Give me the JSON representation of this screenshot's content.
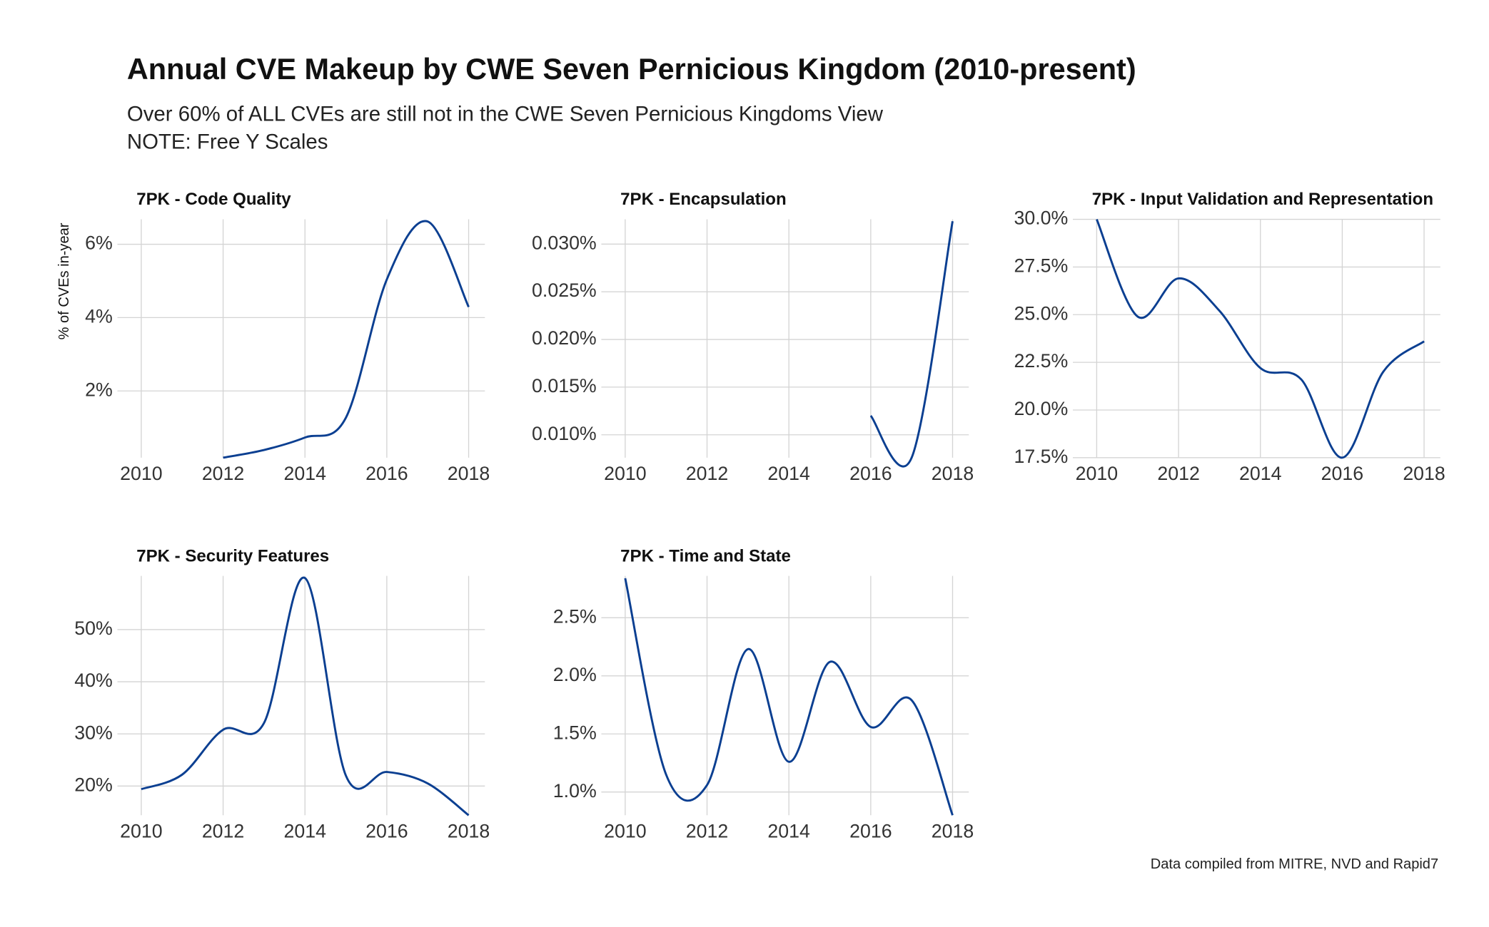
{
  "title": "Annual CVE Makeup by CWE Seven Pernicious Kingdom (2010-present)",
  "subtitle": "Over 60% of ALL CVEs are still not in the CWE Seven Pernicious Kingdoms View",
  "note": "NOTE: Free Y Scales",
  "y_label": "% of CVEs in-year",
  "caption": "Data compiled from MITRE, NVD and Rapid7",
  "chart_data": [
    {
      "type": "line",
      "title": "7PK - Code Quality",
      "color": "#0b3f91",
      "grid": true,
      "x": [
        2010,
        2011,
        2012,
        2013,
        2014,
        2015,
        2016,
        2017,
        2018
      ],
      "values": [
        null,
        null,
        0.18,
        0.39,
        0.73,
        1.27,
        5.04,
        6.62,
        4.29
      ],
      "xlim": [
        2010,
        2018
      ],
      "xticks": [
        2010,
        2012,
        2014,
        2016,
        2018
      ],
      "ylim": [
        0.18,
        6.68
      ],
      "yticks": [
        {
          "value": 2,
          "label": "2%"
        },
        {
          "value": 4,
          "label": "4%"
        },
        {
          "value": 6,
          "label": "6%"
        }
      ]
    },
    {
      "type": "line",
      "title": "7PK - Encapsulation",
      "color": "#0b3f91",
      "grid": true,
      "x": [
        2010,
        2011,
        2012,
        2013,
        2014,
        2015,
        2016,
        2017,
        2018
      ],
      "values": [
        null,
        null,
        null,
        null,
        null,
        null,
        0.012,
        0.0076,
        0.0324
      ],
      "xlim": [
        2010,
        2018
      ],
      "xticks": [
        2010,
        2012,
        2014,
        2016,
        2018
      ],
      "ylim": [
        0.0076,
        0.0326
      ],
      "yticks": [
        {
          "value": 0.01,
          "label": "0.010%"
        },
        {
          "value": 0.015,
          "label": "0.015%"
        },
        {
          "value": 0.02,
          "label": "0.020%"
        },
        {
          "value": 0.025,
          "label": "0.025%"
        },
        {
          "value": 0.03,
          "label": "0.030%"
        }
      ]
    },
    {
      "type": "line",
      "title": "7PK - Input Validation and Representation",
      "color": "#0b3f91",
      "grid": true,
      "x": [
        2010,
        2011,
        2012,
        2013,
        2014,
        2015,
        2016,
        2017,
        2018
      ],
      "values": [
        30.0,
        24.9,
        26.9,
        25.2,
        22.2,
        21.6,
        17.5,
        22.0,
        23.6
      ],
      "xlim": [
        2010,
        2018
      ],
      "xticks": [
        2010,
        2012,
        2014,
        2016,
        2018
      ],
      "ylim": [
        17.5,
        30
      ],
      "yticks": [
        {
          "value": 17.5,
          "label": "17.5%"
        },
        {
          "value": 20,
          "label": "20.0%"
        },
        {
          "value": 22.5,
          "label": "22.5%"
        },
        {
          "value": 25,
          "label": "25.0%"
        },
        {
          "value": 27.5,
          "label": "27.5%"
        },
        {
          "value": 30,
          "label": "30.0%"
        }
      ]
    },
    {
      "type": "line",
      "title": "7PK - Security Features",
      "color": "#0b3f91",
      "grid": true,
      "x": [
        2010,
        2011,
        2012,
        2013,
        2014,
        2015,
        2016,
        2017,
        2018
      ],
      "values": [
        19.4,
        22.2,
        30.8,
        32.1,
        59.9,
        22.0,
        22.7,
        20.5,
        14.4
      ],
      "xlim": [
        2010,
        2018
      ],
      "xticks": [
        2010,
        2012,
        2014,
        2016,
        2018
      ],
      "ylim": [
        14.4,
        60.3
      ],
      "yticks": [
        {
          "value": 20,
          "label": "20%"
        },
        {
          "value": 30,
          "label": "30%"
        },
        {
          "value": 40,
          "label": "40%"
        },
        {
          "value": 50,
          "label": "50%"
        }
      ]
    },
    {
      "type": "line",
      "title": "7PK - Time and State",
      "color": "#0b3f91",
      "grid": true,
      "x": [
        2010,
        2011,
        2012,
        2013,
        2014,
        2015,
        2016,
        2017,
        2018
      ],
      "values": [
        2.84,
        1.15,
        1.06,
        2.23,
        1.26,
        2.12,
        1.56,
        1.79,
        0.8
      ],
      "xlim": [
        2010,
        2018
      ],
      "xticks": [
        2010,
        2012,
        2014,
        2016,
        2018
      ],
      "ylim": [
        0.8,
        2.86
      ],
      "yticks": [
        {
          "value": 1,
          "label": "1.0%"
        },
        {
          "value": 1.5,
          "label": "1.5%"
        },
        {
          "value": 2,
          "label": "2.0%"
        },
        {
          "value": 2.5,
          "label": "2.5%"
        }
      ]
    }
  ]
}
